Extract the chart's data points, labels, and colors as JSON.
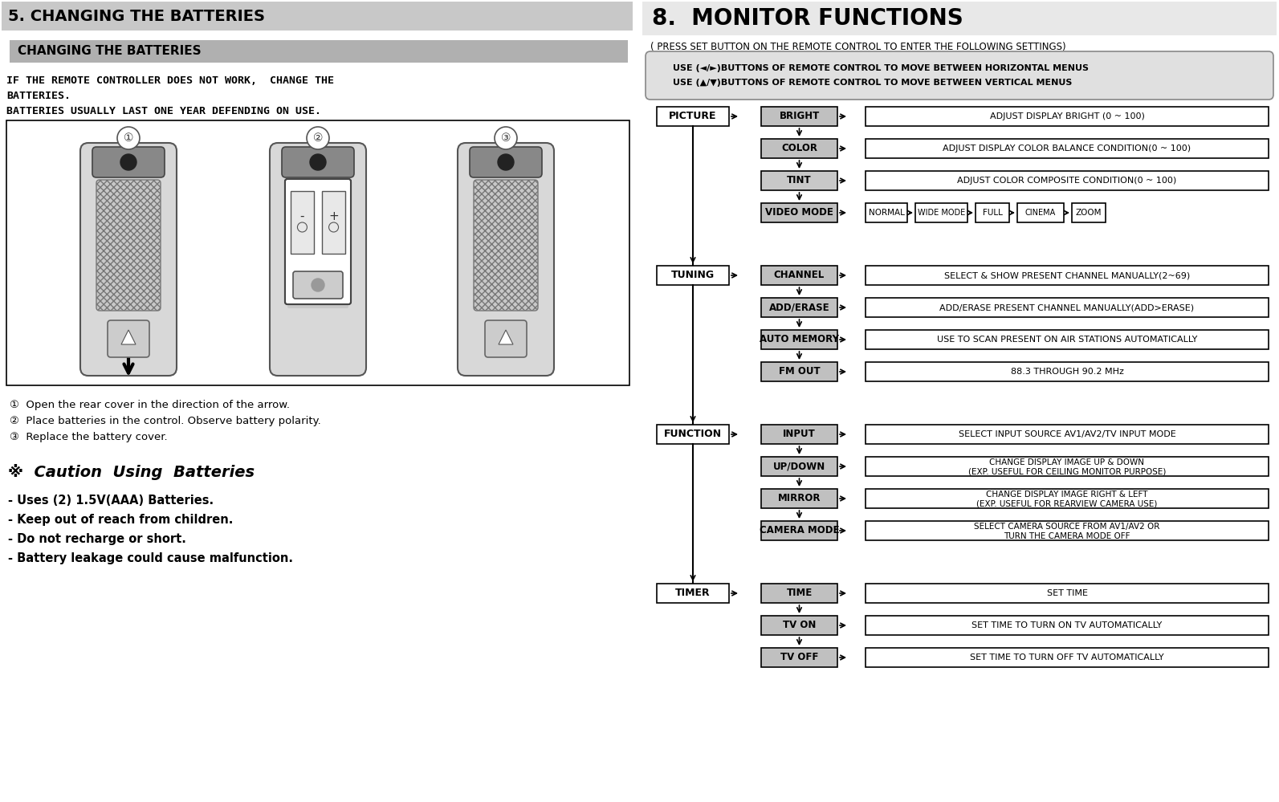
{
  "bg_color": "#ffffff",
  "left_panel": {
    "section_title": "5. CHANGING THE BATTERIES",
    "section_title_bg": "#c8c8c8",
    "subsection_title": "CHANGING THE BATTERIES",
    "subsection_title_bg": "#b0b0b0",
    "body_line1": "IF THE REMOTE CONTROLLER DOES NOT WORK,  CHANGE THE",
    "body_line2": "BATTERIES.",
    "body_line3": "BATTERIES USUALLY LAST ONE YEAR DEFENDING ON USE.",
    "steps": [
      "①  Open the rear cover in the direction of the arrow.",
      "②  Place batteries in the control. Observe battery polarity.",
      "③  Replace the battery cover."
    ],
    "caution_title_italic": "※  Caution  Using  Batteries",
    "caution_items": [
      "- Uses (2) 1.5V(AAA) Batteries.",
      "- Keep out of reach from children.",
      "- Do not recharge or short.",
      "- Battery leakage could cause malfunction."
    ]
  },
  "right_panel": {
    "section_title": "8.  MONITOR FUNCTIONS",
    "section_title_bg": "#e8e8e8",
    "press_note": "( PRESS SET BUTTON ON THE REMOTE CONTROL TO ENTER THE FOLLOWING SETTINGS)",
    "use_box_lines": [
      "USE (◄/►)BUTTONS OF REMOTE CONTROL TO MOVE BETWEEN HORIZONTAL MENUS",
      "USE (▲/▼)BUTTONS OF REMOTE CONTROL TO MOVE BETWEEN VERTICAL MENUS"
    ],
    "use_box_bg": "#e0e0e0",
    "flowchart": {
      "groups": [
        {
          "main_label": "PICTURE",
          "main_bg": "#ffffff",
          "items": [
            {
              "label": "BRIGHT",
              "bg": "#c0c0c0",
              "desc": "ADJUST DISPLAY BRIGHT (0 ~ 100)"
            },
            {
              "label": "COLOR",
              "bg": "#c0c0c0",
              "desc": "ADJUST DISPLAY COLOR BALANCE CONDITION(0 ~ 100)"
            },
            {
              "label": "TINT",
              "bg": "#c8c8c8",
              "desc": "ADJUST COLOR COMPOSITE CONDITION(0 ~ 100)"
            },
            {
              "label": "VIDEO MODE",
              "bg": "#c0c0c0",
              "desc": "VIDEO_MODE_SPECIAL"
            }
          ]
        },
        {
          "main_label": "TUNING",
          "main_bg": "#ffffff",
          "items": [
            {
              "label": "CHANNEL",
              "bg": "#c0c0c0",
              "desc": "SELECT & SHOW PRESENT CHANNEL MANUALLY(2~69)"
            },
            {
              "label": "ADD/ERASE",
              "bg": "#c0c0c0",
              "desc": "ADD/ERASE PRESENT CHANNEL MANUALLY(ADD>ERASE)"
            },
            {
              "label": "AUTO MEMORY",
              "bg": "#c0c0c0",
              "desc": "USE TO SCAN PRESENT ON AIR STATIONS AUTOMATICALLY"
            },
            {
              "label": "FM OUT",
              "bg": "#c0c0c0",
              "desc": "88.3 THROUGH 90.2 MHz",
              "bold_label": true
            }
          ]
        },
        {
          "main_label": "FUNCTION",
          "main_bg": "#ffffff",
          "items": [
            {
              "label": "INPUT",
              "bg": "#c0c0c0",
              "desc": "SELECT INPUT SOURCE AV1/AV2/TV INPUT MODE"
            },
            {
              "label": "UP/DOWN",
              "bg": "#c0c0c0",
              "desc": "CHANGE DISPLAY IMAGE UP & DOWN\n(EXP. USEFUL FOR CEILING MONITOR PURPOSE)"
            },
            {
              "label": "MIRROR",
              "bg": "#c0c0c0",
              "desc": "CHANGE DISPLAY IMAGE RIGHT & LEFT\n(EXP. USEFUL FOR REARVIEW CAMERA USE)"
            },
            {
              "label": "CAMERA MODE",
              "bg": "#c0c0c0",
              "desc": "SELECT CAMERA SOURCE FROM AV1/AV2 OR\nTURN THE CAMERA MODE OFF"
            }
          ]
        },
        {
          "main_label": "TIMER",
          "main_bg": "#ffffff",
          "items": [
            {
              "label": "TIME",
              "bg": "#c0c0c0",
              "desc": "SET TIME"
            },
            {
              "label": "TV ON",
              "bg": "#c0c0c0",
              "desc": "SET TIME TO TURN ON TV AUTOMATICALLY"
            },
            {
              "label": "TV OFF",
              "bg": "#c0c0c0",
              "desc": "SET TIME TO TURN OFF TV AUTOMATICALLY"
            }
          ]
        }
      ],
      "video_mode_items": [
        "NORMAL",
        "WIDE MODE",
        "FULL",
        "CINEMA",
        "ZOOM"
      ]
    }
  }
}
